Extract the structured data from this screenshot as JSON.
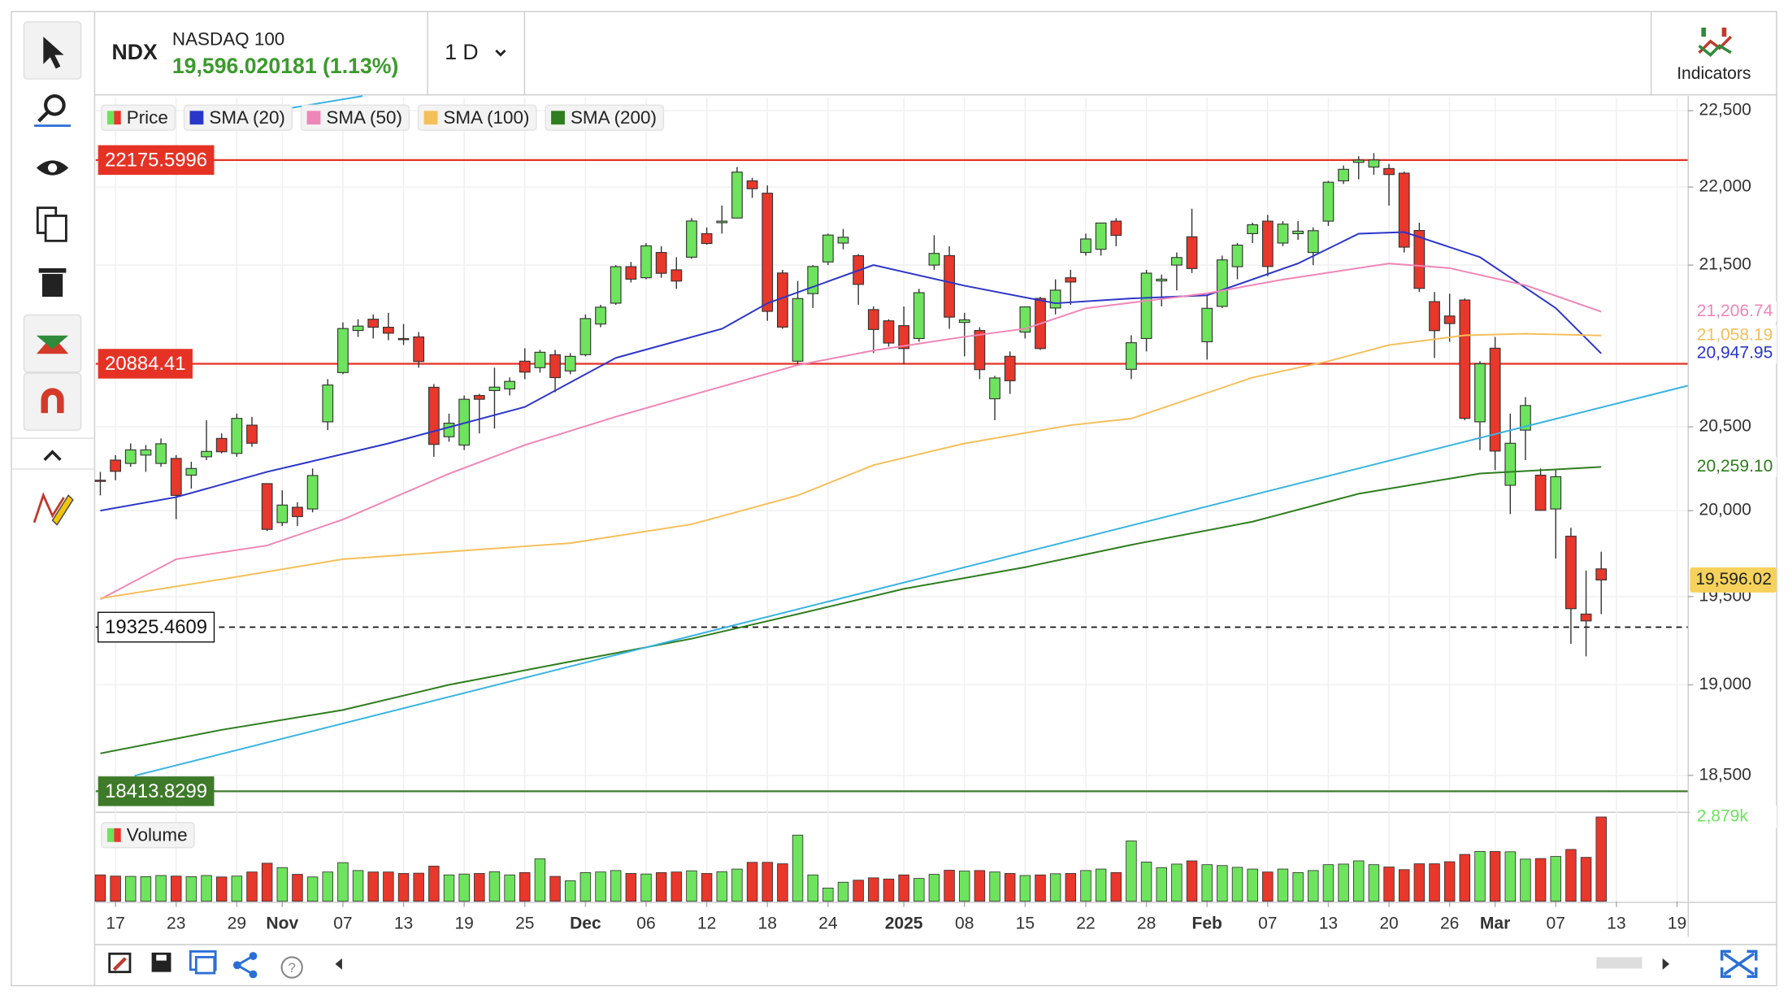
{
  "header": {
    "symbol": "NDX",
    "name": "NASDAQ 100",
    "quote": "19,596.020181 (1.13%)",
    "interval": "1 D",
    "indicators_button": "Indicators"
  },
  "chart_data": [
    {
      "type": "candlestick",
      "name": "Price",
      "log_scale": true,
      "grid": true,
      "up_color": "#6ee35e",
      "down_color": "#e8372b",
      "ylim": [
        18300,
        22590
      ],
      "yticks": [
        {
          "value": 18500,
          "label": "18,500"
        },
        {
          "value": 19000,
          "label": "19,000"
        },
        {
          "value": 19500,
          "label": "19,500"
        },
        {
          "value": 20000,
          "label": "20,000"
        },
        {
          "value": 20500,
          "label": "20,500"
        },
        {
          "value": 21500,
          "label": "21,500"
        },
        {
          "value": 22000,
          "label": "22,000"
        },
        {
          "value": 22500,
          "label": "22,500"
        }
      ],
      "xlim": [
        -0.3,
        104.7
      ],
      "xticks": [
        {
          "value": 1,
          "label": "17"
        },
        {
          "value": 5,
          "label": "23"
        },
        {
          "value": 9,
          "label": "29"
        },
        {
          "value": 12,
          "label": "Nov"
        },
        {
          "value": 16,
          "label": "07"
        },
        {
          "value": 20,
          "label": "13"
        },
        {
          "value": 24,
          "label": "19"
        },
        {
          "value": 28,
          "label": "25"
        },
        {
          "value": 32,
          "label": "Dec"
        },
        {
          "value": 36,
          "label": "06"
        },
        {
          "value": 40,
          "label": "12"
        },
        {
          "value": 44,
          "label": "18"
        },
        {
          "value": 48,
          "label": "24"
        },
        {
          "value": 53,
          "label": "2025"
        },
        {
          "value": 57,
          "label": "08"
        },
        {
          "value": 61,
          "label": "15"
        },
        {
          "value": 65,
          "label": "22"
        },
        {
          "value": 69,
          "label": "28"
        },
        {
          "value": 73,
          "label": "Feb"
        },
        {
          "value": 77,
          "label": "07"
        },
        {
          "value": 81,
          "label": "13"
        },
        {
          "value": 85,
          "label": "20"
        },
        {
          "value": 89,
          "label": "26"
        },
        {
          "value": 92,
          "label": "Mar"
        },
        {
          "value": 96,
          "label": "07"
        },
        {
          "value": 100,
          "label": "13"
        },
        {
          "value": 104,
          "label": "19"
        }
      ],
      "open": [
        20180,
        20300,
        20280,
        20330,
        20280,
        20310,
        20210,
        20320,
        20430,
        20340,
        20510,
        20160,
        19930,
        20020,
        20010,
        20530,
        20830,
        21090,
        21160,
        21110,
        21040,
        21050,
        20740,
        20440,
        20390,
        20690,
        20720,
        20730,
        20900,
        20860,
        20940,
        20840,
        20940,
        21130,
        21260,
        21490,
        21420,
        21580,
        21470,
        21550,
        21700,
        21770,
        21800,
        22040,
        21960,
        21450,
        20900,
        21320,
        21520,
        21640,
        21560,
        21220,
        21150,
        21120,
        21040,
        21500,
        21560,
        21140,
        21090,
        20670,
        20930,
        21080,
        21290,
        21230,
        21420,
        21580,
        21600,
        21780,
        20850,
        21040,
        21400,
        21500,
        21680,
        21020,
        21240,
        21490,
        21700,
        21780,
        21640,
        21700,
        21580,
        21780,
        22040,
        22160,
        22130,
        22120,
        22090,
        21720,
        21270,
        21180,
        21280,
        20530,
        20980,
        20150,
        20480,
        20210,
        20010,
        19850,
        19400,
        19660
      ],
      "high": [
        20230,
        20330,
        20400,
        20390,
        20430,
        20330,
        20290,
        20540,
        20460,
        20580,
        20560,
        20160,
        20120,
        20050,
        20250,
        20790,
        21140,
        21160,
        21190,
        21200,
        21130,
        21080,
        20760,
        20580,
        20690,
        20700,
        20860,
        20800,
        20980,
        20970,
        20970,
        20950,
        21190,
        21250,
        21500,
        21520,
        21640,
        21620,
        21550,
        21800,
        21740,
        21880,
        22130,
        22060,
        22010,
        21470,
        21400,
        21500,
        21700,
        21730,
        21570,
        21240,
        21160,
        21240,
        21350,
        21690,
        21620,
        21200,
        21110,
        20810,
        20960,
        21240,
        21300,
        21410,
        21470,
        21700,
        21770,
        21800,
        21060,
        21470,
        21440,
        21580,
        21860,
        21310,
        21560,
        21640,
        21770,
        21820,
        21780,
        21780,
        21740,
        22040,
        22140,
        22200,
        22220,
        22150,
        22100,
        21770,
        21330,
        21320,
        21290,
        20900,
        21050,
        20580,
        20680,
        20250,
        20240,
        19900,
        19650,
        19760
      ],
      "low": [
        20090,
        20180,
        20260,
        20230,
        20260,
        19950,
        20130,
        20300,
        20340,
        20320,
        20380,
        19880,
        19910,
        19910,
        19990,
        20480,
        20820,
        21050,
        21040,
        21030,
        21000,
        20860,
        20320,
        20410,
        20360,
        20460,
        20490,
        20690,
        20790,
        20830,
        20710,
        20820,
        20930,
        21110,
        21250,
        21390,
        21410,
        21420,
        21350,
        21540,
        21630,
        21700,
        21800,
        21930,
        21150,
        21100,
        20880,
        21230,
        21500,
        21600,
        21250,
        20950,
        20990,
        20880,
        21020,
        21470,
        21100,
        20930,
        20790,
        20540,
        20700,
        21040,
        20970,
        21190,
        21250,
        21560,
        21560,
        21620,
        20790,
        20960,
        21240,
        21340,
        21450,
        20910,
        21230,
        21410,
        21640,
        21430,
        21620,
        21660,
        21500,
        21750,
        22020,
        22050,
        22080,
        21880,
        21580,
        21330,
        20920,
        21020,
        20540,
        20360,
        20240,
        19980,
        20300,
        20000,
        19720,
        19230,
        19160,
        19400
      ],
      "close": [
        20173,
        20233,
        20361,
        20361,
        20398,
        20090,
        20250,
        20352,
        20350,
        20551,
        20401,
        19890,
        20033,
        19965,
        20208,
        20754,
        21102,
        21117,
        21110,
        21073,
        21035,
        20898,
        20394,
        20522,
        20667,
        20667,
        20741,
        20776,
        20833,
        20955,
        20799,
        20930,
        21164,
        21235,
        21490,
        21411,
        21622,
        21448,
        21399,
        21781,
        21637,
        21780,
        22097,
        21989,
        21209,
        21111,
        21289,
        21491,
        21691,
        21677,
        21378,
        21096,
        21012,
        20978,
        21326,
        21574,
        21173,
        21156,
        20848,
        20797,
        20780,
        21237,
        20978,
        21342,
        21393,
        21666,
        21768,
        21689,
        21014,
        21449,
        21411,
        21548,
        21478,
        21228,
        21533,
        21627,
        21757,
        21491,
        21761,
        21716,
        21719,
        22031,
        22115,
        22175,
        22176,
        22081,
        21614,
        21353,
        21089,
        21133,
        20551,
        20884,
        20354,
        20401,
        20629,
        20002,
        20201,
        19431,
        19361,
        19596.02
      ],
      "last_label": "19,596.02",
      "last_color": "#f6d25c",
      "overlays": [
        {
          "name": "SMA (20)",
          "color": "#2b35c9",
          "x": [
            0,
            5,
            11,
            19,
            28,
            34,
            41,
            44,
            51,
            57,
            63,
            68,
            73,
            79,
            83,
            86,
            91,
            96,
            99
          ],
          "values": [
            20000,
            20080,
            20230,
            20400,
            20620,
            20920,
            21100,
            21260,
            21500,
            21370,
            21260,
            21290,
            21310,
            21510,
            21700,
            21710,
            21550,
            21230,
            20947.95
          ],
          "last_label": "20,947.95"
        },
        {
          "name": "SMA (50)",
          "color": "#ef86b8",
          "x": [
            0,
            5,
            11,
            16,
            23,
            28,
            34,
            38,
            46,
            51,
            57,
            61,
            65,
            73,
            78,
            85,
            89,
            94,
            99
          ],
          "values": [
            19485,
            19716,
            19796,
            19948,
            20219,
            20390,
            20561,
            20666,
            20876,
            20966,
            21051,
            21101,
            21228,
            21322,
            21409,
            21510,
            21481,
            21373,
            21206.74
          ],
          "last_label": "21,206.74"
        },
        {
          "name": "SMA (100)",
          "color": "#f5bf5a",
          "x": [
            0,
            8,
            16,
            23,
            31,
            39,
            46,
            51,
            57,
            64,
            68,
            76,
            81,
            85,
            90,
            94,
            99
          ],
          "values": [
            19490,
            19600,
            19716,
            19760,
            19810,
            19920,
            20090,
            20270,
            20400,
            20510,
            20550,
            20800,
            20900,
            21000,
            21060,
            21070,
            21058.19
          ],
          "last_label": "21,058.19"
        },
        {
          "name": "SMA (200)",
          "color": "#2e7d1e",
          "x": [
            0,
            8,
            16,
            23,
            31,
            39,
            46,
            53,
            61,
            68,
            76,
            83,
            91,
            99
          ],
          "values": [
            18620,
            18750,
            18860,
            19000,
            19130,
            19260,
            19400,
            19545,
            19670,
            19800,
            19935,
            20100,
            20220,
            20259.1
          ],
          "last_label": "20,259.10"
        }
      ],
      "levels": [
        {
          "value": 22175.5996,
          "color": "#e53225",
          "style": "solid"
        },
        {
          "value": 20884.41,
          "color": "#e53225",
          "style": "solid"
        },
        {
          "value": 19325.4609,
          "color": "#111111",
          "style": "dashed"
        },
        {
          "value": 18413.8299,
          "color": "#3e7a2a",
          "style": "solid"
        }
      ]
    },
    {
      "type": "bar",
      "title": "Volume",
      "ylim": [
        0,
        3000
      ],
      "values": [
        900,
        860,
        850,
        840,
        880,
        860,
        840,
        880,
        830,
        860,
        1000,
        1300,
        1150,
        920,
        830,
        1000,
        1320,
        1050,
        1000,
        1000,
        950,
        960,
        1200,
        900,
        930,
        950,
        1010,
        900,
        980,
        1450,
        850,
        700,
        980,
        1000,
        1050,
        950,
        930,
        980,
        1000,
        1040,
        950,
        1010,
        1100,
        1330,
        1330,
        1280,
        2260,
        900,
        450,
        650,
        720,
        800,
        760,
        900,
        780,
        920,
        1060,
        1030,
        1050,
        1000,
        950,
        880,
        900,
        940,
        950,
        1050,
        1100,
        980,
        2060,
        1340,
        1150,
        1270,
        1380,
        1250,
        1220,
        1160,
        1100,
        1000,
        1100,
        980,
        1050,
        1250,
        1270,
        1380,
        1250,
        1170,
        1080,
        1280,
        1280,
        1350,
        1600,
        1700,
        1700,
        1690,
        1440,
        1460,
        1530,
        1770,
        1500,
        2879
      ],
      "last_label": "2,879k",
      "last_color": "#6ee35e"
    }
  ]
}
